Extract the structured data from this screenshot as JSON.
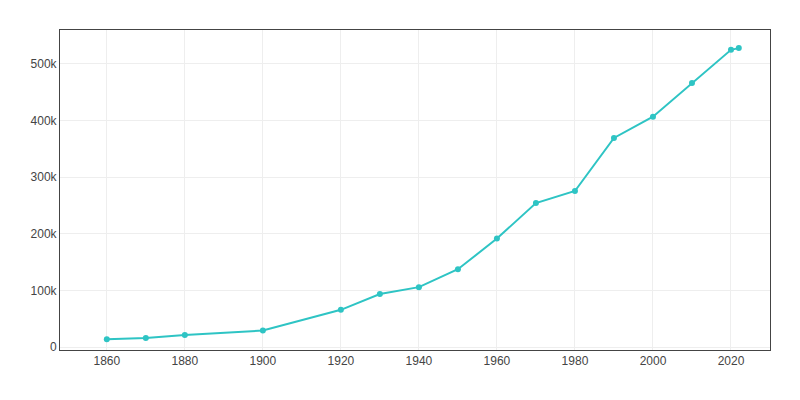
{
  "chart_data": {
    "type": "line",
    "x": [
      1860,
      1870,
      1880,
      1900,
      1920,
      1930,
      1940,
      1950,
      1960,
      1970,
      1980,
      1990,
      2000,
      2010,
      2020,
      2022
    ],
    "values": [
      13785,
      16283,
      21420,
      29282,
      65908,
      93750,
      105958,
      137572,
      191667,
      254413,
      275741,
      369365,
      407018,
      466488,
      524943,
      528002
    ],
    "color": "#2EC4C4",
    "marker": "circle",
    "line_style": "solid",
    "xlim": [
      1848,
      2030
    ],
    "ylim": [
      -5000,
      560000
    ],
    "xticks": [
      1860,
      1880,
      1900,
      1920,
      1940,
      1960,
      1980,
      2000,
      2020
    ],
    "yticks": [
      0,
      {
        "value": 100000,
        "label": "100k"
      },
      {
        "value": 200000,
        "label": "200k"
      },
      {
        "value": 300000,
        "label": "300k"
      },
      {
        "value": 400000,
        "label": "400k"
      },
      {
        "value": 500000,
        "label": "500k"
      }
    ],
    "grid": true
  }
}
